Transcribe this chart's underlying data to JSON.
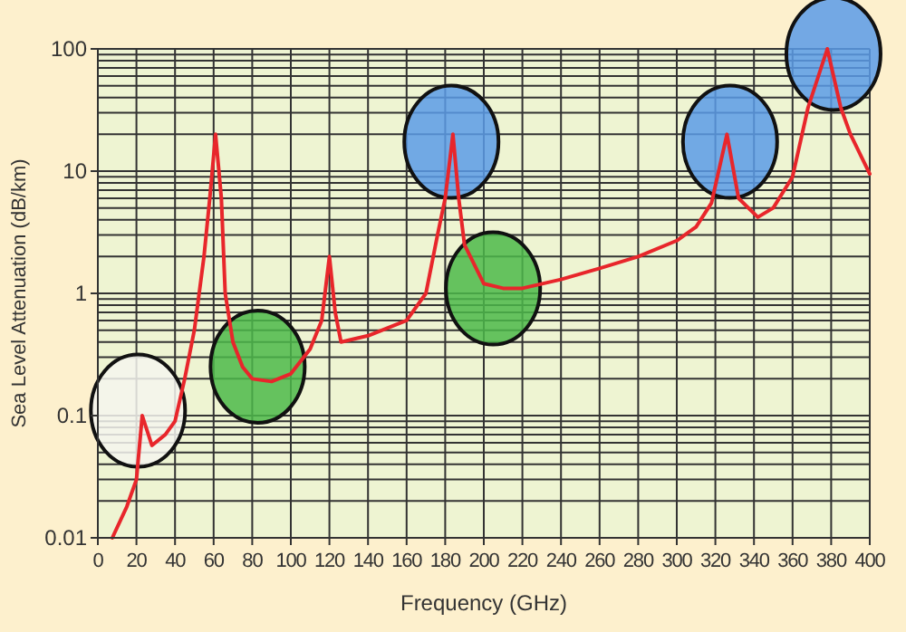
{
  "chart_data": {
    "type": "line",
    "xlabel": "Frequency (GHz)",
    "ylabel": "Sea Level Attenuation (dB/km)",
    "log": "y",
    "grid": true,
    "marker": "none",
    "line_style": "solid",
    "xlim": [
      0,
      400
    ],
    "xticks": [
      0,
      20,
      40,
      60,
      80,
      100,
      120,
      140,
      160,
      180,
      200,
      220,
      240,
      260,
      280,
      300,
      320,
      340,
      360,
      380,
      400
    ],
    "ylim": [
      0.01,
      100
    ],
    "yticks": [
      0.01,
      {
        "value": 0.02,
        "label": null
      },
      {
        "value": 0.03,
        "label": null
      },
      {
        "value": 0.04,
        "label": null
      },
      {
        "value": 0.05,
        "label": null
      },
      {
        "value": 0.06,
        "label": null
      },
      {
        "value": 0.07,
        "label": null
      },
      {
        "value": 0.08,
        "label": null
      },
      {
        "value": 0.09,
        "label": null
      },
      0.1,
      {
        "value": 0.2,
        "label": null
      },
      {
        "value": 0.3,
        "label": null
      },
      {
        "value": 0.4,
        "label": null
      },
      {
        "value": 0.5,
        "label": null
      },
      {
        "value": 0.6,
        "label": null
      },
      {
        "value": 0.7,
        "label": null
      },
      {
        "value": 0.8,
        "label": null
      },
      {
        "value": 0.9,
        "label": null
      },
      1,
      {
        "value": 2,
        "label": null
      },
      {
        "value": 3,
        "label": null
      },
      {
        "value": 4,
        "label": null
      },
      {
        "value": 5,
        "label": null
      },
      {
        "value": 6,
        "label": null
      },
      {
        "value": 7,
        "label": null
      },
      {
        "value": 8,
        "label": null
      },
      {
        "value": 9,
        "label": null
      },
      10,
      {
        "value": 20,
        "label": null
      },
      {
        "value": 30,
        "label": null
      },
      {
        "value": 40,
        "label": null
      },
      {
        "value": 50,
        "label": null
      },
      {
        "value": 60,
        "label": null
      },
      {
        "value": 70,
        "label": null
      },
      {
        "value": 80,
        "label": null
      },
      {
        "value": 90,
        "label": null
      },
      100
    ],
    "series": [
      {
        "color": "#e8262b",
        "x": [
          7.5,
          15,
          20,
          23,
          28,
          35,
          40,
          45,
          50,
          55,
          58,
          61,
          64,
          66,
          70,
          75,
          80,
          90,
          100,
          110,
          116,
          120,
          123,
          126,
          140,
          160,
          170,
          176,
          180,
          184,
          187,
          190,
          200,
          210,
          220,
          240,
          260,
          280,
          300,
          310,
          318,
          326,
          332,
          342,
          350,
          360,
          368,
          378,
          385,
          390,
          400
        ],
        "values": [
          0.01,
          0.018,
          0.03,
          0.1,
          0.057,
          0.07,
          0.09,
          0.2,
          0.5,
          2,
          6,
          20,
          6,
          1,
          0.4,
          0.25,
          0.2,
          0.19,
          0.22,
          0.35,
          0.6,
          2,
          0.7,
          0.4,
          0.45,
          0.6,
          1,
          3,
          6,
          20,
          6,
          2.5,
          1.2,
          1.1,
          1.1,
          1.3,
          1.6,
          2,
          2.7,
          3.5,
          5.5,
          20,
          6,
          4.2,
          5,
          9,
          33,
          100,
          33,
          20,
          9.5
        ]
      }
    ]
  }
}
